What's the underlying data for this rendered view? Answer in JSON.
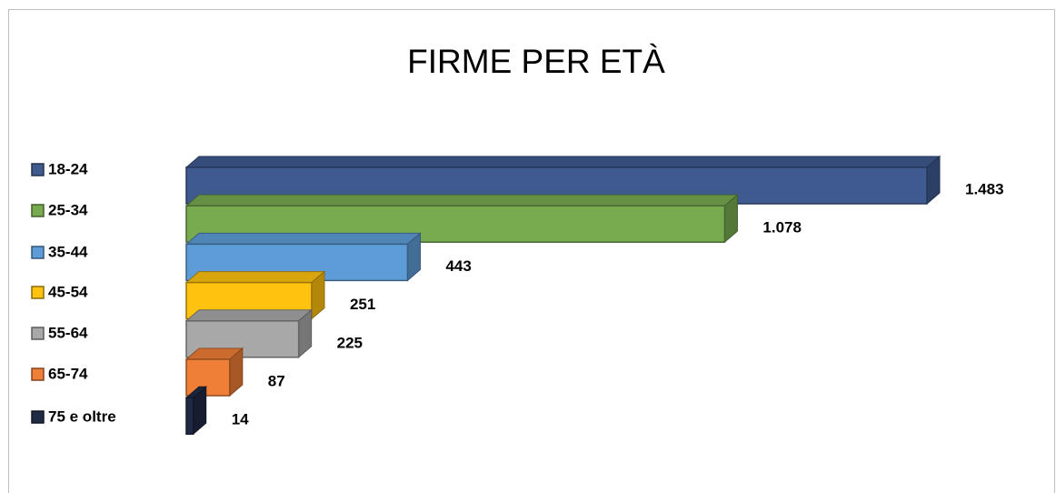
{
  "chart_data": {
    "type": "bar3d",
    "title": "FIRME PER ETÀ",
    "categories": [
      "18-24",
      "25-34",
      "35-44",
      "45-54",
      "55-64",
      "65-74",
      "75 e oltre"
    ],
    "values": [
      1483,
      1078,
      443,
      251,
      225,
      87,
      14
    ],
    "value_labels": [
      "1.483",
      "1.078",
      "443",
      "251",
      "225",
      "87",
      "14"
    ],
    "colors": [
      "#3f5a8f",
      "#78ab50",
      "#5e9cd8",
      "#ffc20e",
      "#a8a8a8",
      "#ef7e36",
      "#1f2a44"
    ],
    "legend": "left"
  }
}
